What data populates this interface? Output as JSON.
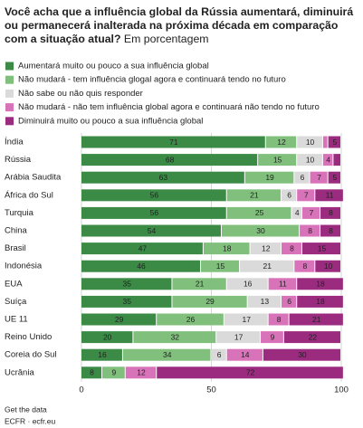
{
  "chart_data": {
    "type": "stacked-bar",
    "title": "Você acha que a influência global da Rússia aumentará, diminuirá ou permanecerá inalterada na próxima década em comparação com a situação atual?",
    "subtitle": "Em porcentagem",
    "categories": [
      "Índia",
      "Rússia",
      "Arábia Saudita",
      "África do Sul",
      "Turquia",
      "China",
      "Brasil",
      "Indonésia",
      "EUA",
      "Suíça",
      "UE 11",
      "Reino Unido",
      "Coreia do Sul",
      "Ucrânia"
    ],
    "series": [
      {
        "name": "Aumentará muito ou pouco a sua influência global",
        "color": "#3b8b46",
        "label_color": "#ffffff",
        "values": [
          71,
          68,
          63,
          56,
          56,
          54,
          47,
          46,
          35,
          35,
          29,
          20,
          16,
          8
        ]
      },
      {
        "name": "Não mudará - tem influência glogal agora e continuará tendo no futuro",
        "color": "#80c07c",
        "label_color": "#ffffff",
        "values": [
          12,
          15,
          19,
          21,
          25,
          30,
          18,
          15,
          21,
          29,
          26,
          32,
          34,
          9
        ]
      },
      {
        "name": "Não sabe ou não quis responder",
        "color": "#dadada",
        "label_color": "#444444",
        "values": [
          10,
          10,
          6,
          6,
          4,
          0,
          12,
          21,
          16,
          13,
          17,
          17,
          6,
          0
        ],
        "value_labels": [
          "10",
          "10",
          "6",
          "6",
          "4",
          null,
          "12",
          "21",
          "16",
          "13",
          "17",
          "17",
          "6",
          null
        ]
      },
      {
        "name": "Não mudará - não tem influência global agora e continuará não tendo no futuro",
        "color": "#d873ba",
        "label_color": "#ffffff",
        "values": [
          2,
          4,
          7,
          7,
          7,
          8,
          8,
          8,
          11,
          6,
          8,
          9,
          14,
          12
        ],
        "value_labels": [
          null,
          "4",
          "7",
          "7",
          "7",
          "8",
          "8",
          "8",
          "11",
          "6",
          "8",
          "9",
          "14",
          "12"
        ]
      },
      {
        "name": "Diminuirá muito ou pouco a sua influência global",
        "color": "#9b2b7f",
        "label_color": "#ffffff",
        "values": [
          5,
          3,
          5,
          11,
          8,
          8,
          15,
          10,
          18,
          18,
          21,
          22,
          30,
          72
        ],
        "value_labels": [
          "5",
          null,
          "5",
          "11",
          "8",
          "8",
          "15",
          "10",
          "18",
          "18",
          "21",
          "22",
          "30",
          "72"
        ]
      }
    ],
    "xlim": [
      0,
      100
    ],
    "xticks": [
      0,
      50,
      100
    ],
    "footer": [
      "Get the data",
      "ECFR · ecfr.eu"
    ]
  }
}
